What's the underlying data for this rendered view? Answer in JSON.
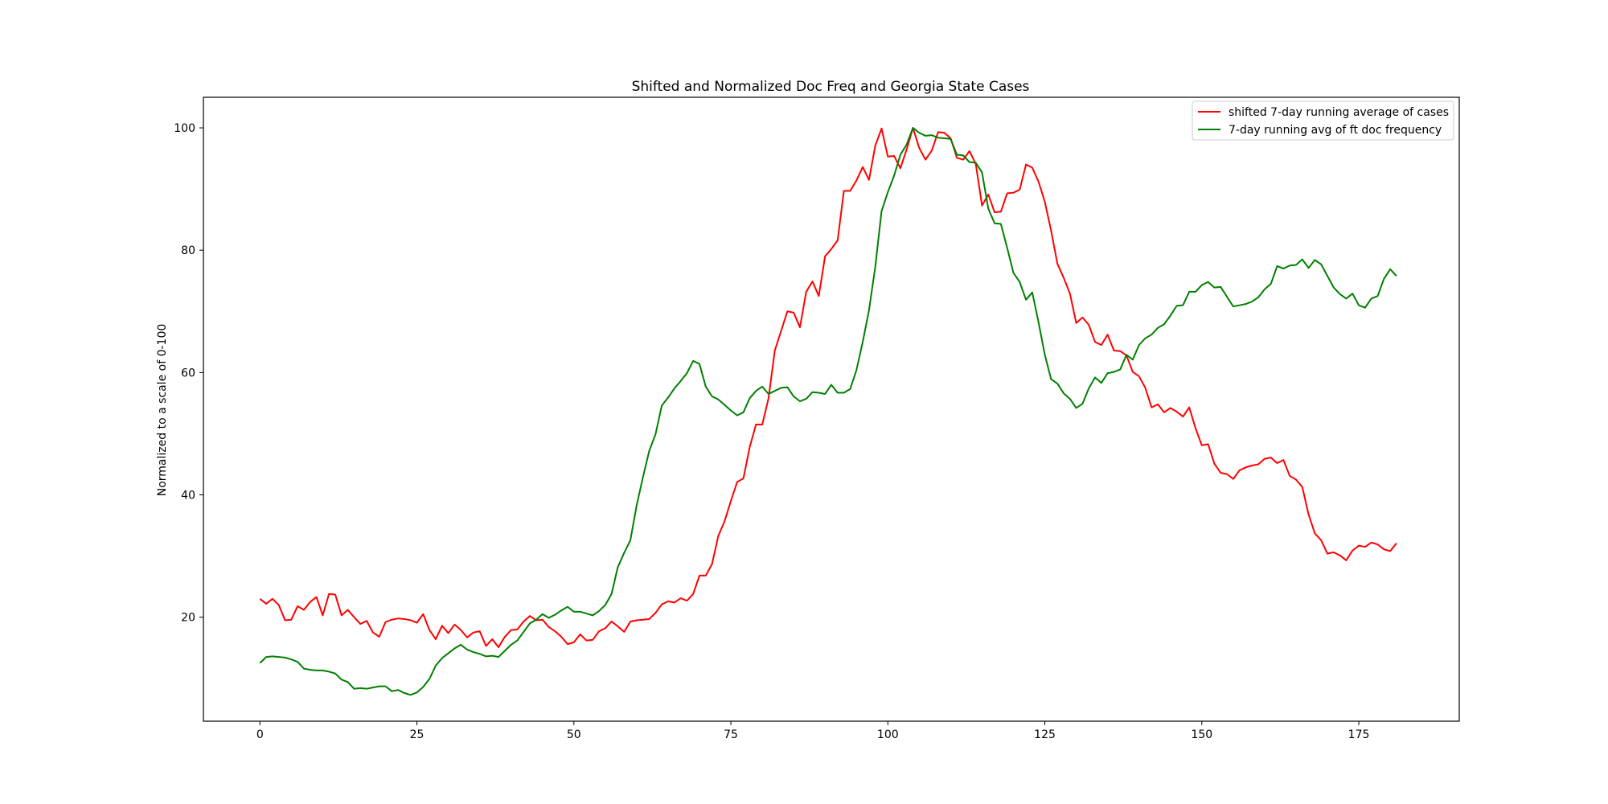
{
  "chart_data": {
    "type": "line",
    "title": "Shifted and Normalized Doc Freq and Georgia State Cases",
    "xlabel": "",
    "ylabel": "Normalized to a scale of 0-100",
    "xlim": [
      -9,
      191
    ],
    "ylim": [
      3,
      105
    ],
    "x_ticks": [
      0,
      25,
      50,
      75,
      100,
      125,
      150,
      175
    ],
    "y_ticks": [
      20,
      40,
      60,
      80,
      100
    ],
    "grid": false,
    "legend_position": "top-right",
    "x": [
      0,
      1,
      2,
      3,
      4,
      5,
      6,
      7,
      8,
      9,
      10,
      11,
      12,
      13,
      14,
      15,
      16,
      17,
      18,
      19,
      20,
      21,
      22,
      23,
      24,
      25,
      26,
      27,
      28,
      29,
      30,
      31,
      32,
      33,
      34,
      35,
      36,
      37,
      38,
      39,
      40,
      41,
      42,
      43,
      44,
      45,
      46,
      47,
      48,
      49,
      50,
      51,
      52,
      53,
      54,
      55,
      56,
      57,
      58,
      59,
      60,
      61,
      62,
      63,
      64,
      65,
      66,
      67,
      68,
      69,
      70,
      71,
      72,
      73,
      74,
      75,
      76,
      77,
      78,
      79,
      80,
      81,
      82,
      83,
      84,
      85,
      86,
      87,
      88,
      89,
      90,
      91,
      92,
      93,
      94,
      95,
      96,
      97,
      98,
      99,
      100,
      101,
      102,
      103,
      104,
      105,
      106,
      107,
      108,
      109,
      110,
      111,
      112,
      113,
      114,
      115,
      116,
      117,
      118,
      119,
      120,
      121,
      122,
      123,
      124,
      125,
      126,
      127,
      128,
      129,
      130,
      131,
      132,
      133,
      134,
      135,
      136,
      137,
      138,
      139,
      140,
      141,
      142,
      143,
      144,
      145,
      146,
      147,
      148,
      149,
      150,
      151,
      152,
      153,
      154,
      155,
      156,
      157,
      158,
      159,
      160,
      161,
      162,
      163,
      164,
      165,
      166,
      167,
      168,
      169,
      170,
      171,
      172,
      173,
      174,
      175,
      176,
      177,
      178,
      179,
      180,
      181
    ],
    "series": [
      {
        "name": "shifted 7-day running average of cases",
        "color": "#ff0000",
        "values": [
          23,
          22.2,
          23,
          22,
          19.5,
          19.6,
          21.8,
          21.2,
          22.5,
          23.3,
          20.3,
          23.8,
          23.7,
          20.3,
          21.2,
          20,
          18.9,
          19.4,
          17.5,
          16.8,
          19.2,
          19.6,
          19.8,
          19.7,
          19.5,
          19.1,
          20.5,
          17.9,
          16.4,
          18.6,
          17.4,
          18.8,
          17.9,
          16.7,
          17.5,
          17.7,
          15.3,
          16.4,
          15.1,
          16.8,
          17.9,
          18,
          19.3,
          20.2,
          19.5,
          19.6,
          18.4,
          17.7,
          16.8,
          15.6,
          15.9,
          17.2,
          16.2,
          16.3,
          17.7,
          18.2,
          19.3,
          18.5,
          17.6,
          19.3,
          19.5,
          19.6,
          19.7,
          20.7,
          22.1,
          22.6,
          22.4,
          23.1,
          22.7,
          23.8,
          26.8,
          26.8,
          28.7,
          33.3,
          35.7,
          39,
          42.1,
          42.7,
          47.8,
          51.5,
          51.5,
          55.8,
          63.6,
          66.8,
          70,
          69.8,
          67.4,
          73.2,
          74.9,
          72.5,
          79,
          80.2,
          81.6,
          89.7,
          89.7,
          91.4,
          93.6,
          91.5,
          97.1,
          99.9,
          95.3,
          95.4,
          93.4,
          96.5,
          100,
          96.7,
          94.8,
          96.3,
          99.3,
          99.2,
          98.3,
          95.1,
          94.8,
          96.2,
          94.1,
          87.3,
          89.1,
          86.2,
          86.3,
          89.3,
          89.4,
          89.9,
          94,
          93.5,
          91.2,
          87.9,
          83.2,
          77.8,
          75.5,
          72.9,
          68.1,
          69,
          67.8,
          65,
          64.5,
          66.2,
          63.6,
          63.5,
          62.8,
          60.1,
          59.4,
          57.5,
          54.3,
          54.8,
          53.5,
          54.2,
          53.6,
          52.8,
          54.3,
          50.9,
          48.1,
          48.3,
          45.1,
          43.6,
          43.4,
          42.6,
          44,
          44.5,
          44.8,
          45,
          45.9,
          46.1,
          45.2,
          45.7,
          43.1,
          42.5,
          41.3,
          36.8,
          33.7,
          32.6,
          30.4,
          30.6,
          30.1,
          29.3,
          30.9,
          31.7,
          31.5,
          32.2,
          31.9,
          31.1,
          30.8,
          32.1
        ]
      },
      {
        "name": "7-day running avg of ft doc frequency",
        "color": "#008000",
        "values": [
          12.5,
          13.5,
          13.6,
          13.5,
          13.4,
          13.1,
          12.7,
          11.6,
          11.4,
          11.3,
          11.3,
          11.1,
          10.8,
          9.8,
          9.4,
          8.3,
          8.4,
          8.3,
          8.5,
          8.7,
          8.7,
          7.9,
          8.1,
          7.6,
          7.3,
          7.7,
          8.6,
          9.9,
          12.1,
          13.3,
          14.1,
          14.9,
          15.5,
          14.7,
          14.3,
          14,
          13.6,
          13.7,
          13.5,
          14.5,
          15.5,
          16.2,
          17.6,
          19,
          19.6,
          20.5,
          19.9,
          20.4,
          21.1,
          21.7,
          20.9,
          20.9,
          20.6,
          20.3,
          21,
          22,
          23.8,
          28.2,
          30.5,
          32.6,
          38.3,
          42.9,
          47.2,
          49.9,
          54.6,
          55.9,
          57.4,
          58.6,
          59.9,
          61.9,
          61.4,
          57.7,
          56.1,
          55.6,
          54.7,
          53.8,
          53,
          53.5,
          55.8,
          57,
          57.7,
          56.5,
          57,
          57.5,
          57.6,
          56.1,
          55.3,
          55.7,
          56.8,
          56.7,
          56.5,
          58,
          56.7,
          56.7,
          57.3,
          60.4,
          65,
          70.2,
          77.3,
          86.4,
          89.5,
          92.2,
          95.6,
          97.3,
          100,
          99.2,
          98.7,
          98.8,
          98.4,
          98.3,
          98.2,
          95.6,
          95.5,
          94.4,
          94.3,
          92.7,
          86.8,
          84.4,
          84.3,
          80.4,
          76.3,
          74.8,
          71.9,
          73.1,
          68.2,
          62.9,
          58.9,
          58.2,
          56.6,
          55.7,
          54.2,
          54.9,
          57.4,
          59.2,
          58.3,
          59.9,
          60.1,
          60.5,
          62.9,
          62.1,
          64.5,
          65.6,
          66.2,
          67.3,
          67.9,
          69.3,
          70.9,
          71,
          73.2,
          73.2,
          74.3,
          74.8,
          73.9,
          74,
          72.4,
          70.8,
          71,
          71.2,
          71.6,
          72.3,
          73.6,
          74.5,
          77.4,
          77,
          77.5,
          77.6,
          78.5,
          77.1,
          78.4,
          77.7,
          75.8,
          73.9,
          72.8,
          72.1,
          72.9,
          71,
          70.6,
          72.1,
          72.5,
          75.3,
          76.9,
          75.8
        ]
      }
    ]
  }
}
